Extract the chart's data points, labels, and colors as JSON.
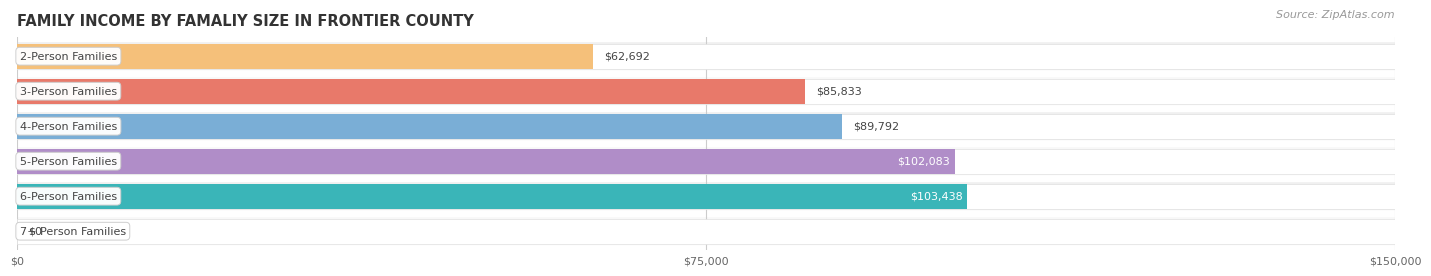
{
  "title": "FAMILY INCOME BY FAMALIY SIZE IN FRONTIER COUNTY",
  "source": "Source: ZipAtlas.com",
  "categories": [
    "2-Person Families",
    "3-Person Families",
    "4-Person Families",
    "5-Person Families",
    "6-Person Families",
    "7+ Person Families"
  ],
  "values": [
    62692,
    85833,
    89792,
    102083,
    103438,
    0
  ],
  "bar_colors": [
    "#f5c07a",
    "#e8796a",
    "#7aaed6",
    "#b08dc8",
    "#3ab5b8",
    "#c5c8f0"
  ],
  "row_bg_colors": [
    "#f0f0f0",
    "#f8f8f8",
    "#f0f0f0",
    "#f8f8f8",
    "#f0f0f0",
    "#f8f8f8"
  ],
  "value_labels": [
    "$62,692",
    "$85,833",
    "$89,792",
    "$102,083",
    "$103,438",
    "$0"
  ],
  "value_inside": [
    false,
    false,
    false,
    true,
    true,
    false
  ],
  "xlim": [
    0,
    150000
  ],
  "xtick_values": [
    0,
    75000,
    150000
  ],
  "xtick_labels": [
    "$0",
    "$75,000",
    "$150,000"
  ],
  "background_color": "#ffffff",
  "bar_height": 0.72,
  "title_fontsize": 10.5,
  "label_fontsize": 8,
  "value_fontsize": 8,
  "source_fontsize": 8
}
